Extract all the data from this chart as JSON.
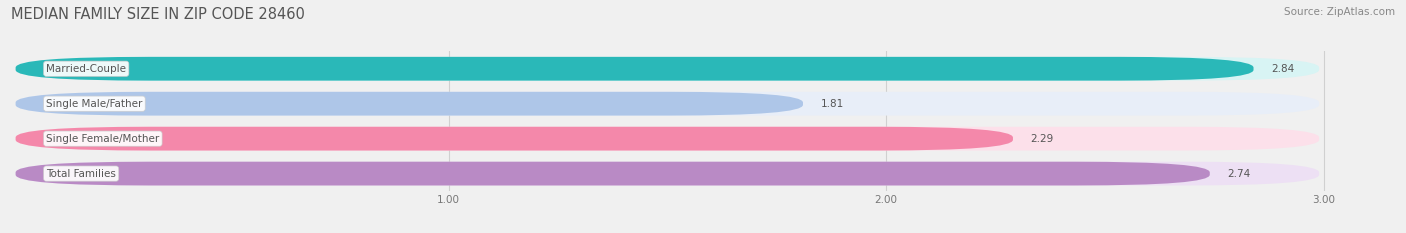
{
  "title": "MEDIAN FAMILY SIZE IN ZIP CODE 28460",
  "source": "Source: ZipAtlas.com",
  "categories": [
    "Married-Couple",
    "Single Male/Father",
    "Single Female/Mother",
    "Total Families"
  ],
  "values": [
    2.84,
    1.81,
    2.29,
    2.74
  ],
  "bar_colors": [
    "#2ab8b8",
    "#aec6e8",
    "#f488aa",
    "#b98ac5"
  ],
  "bar_bg_colors": [
    "#d8f4f4",
    "#e8eef8",
    "#fce0ea",
    "#ede0f4"
  ],
  "xlim": [
    0.0,
    3.15
  ],
  "xmin": 0.0,
  "xmax": 3.0,
  "xticks": [
    1.0,
    2.0,
    3.0
  ],
  "bar_height": 0.68,
  "bar_gap": 0.12,
  "label_fontsize": 7.5,
  "value_fontsize": 7.5,
  "title_fontsize": 10.5,
  "source_fontsize": 7.5,
  "background_color": "#f0f0f0",
  "grid_color": "#d0d0d0",
  "text_color": "#555555",
  "source_color": "#888888"
}
